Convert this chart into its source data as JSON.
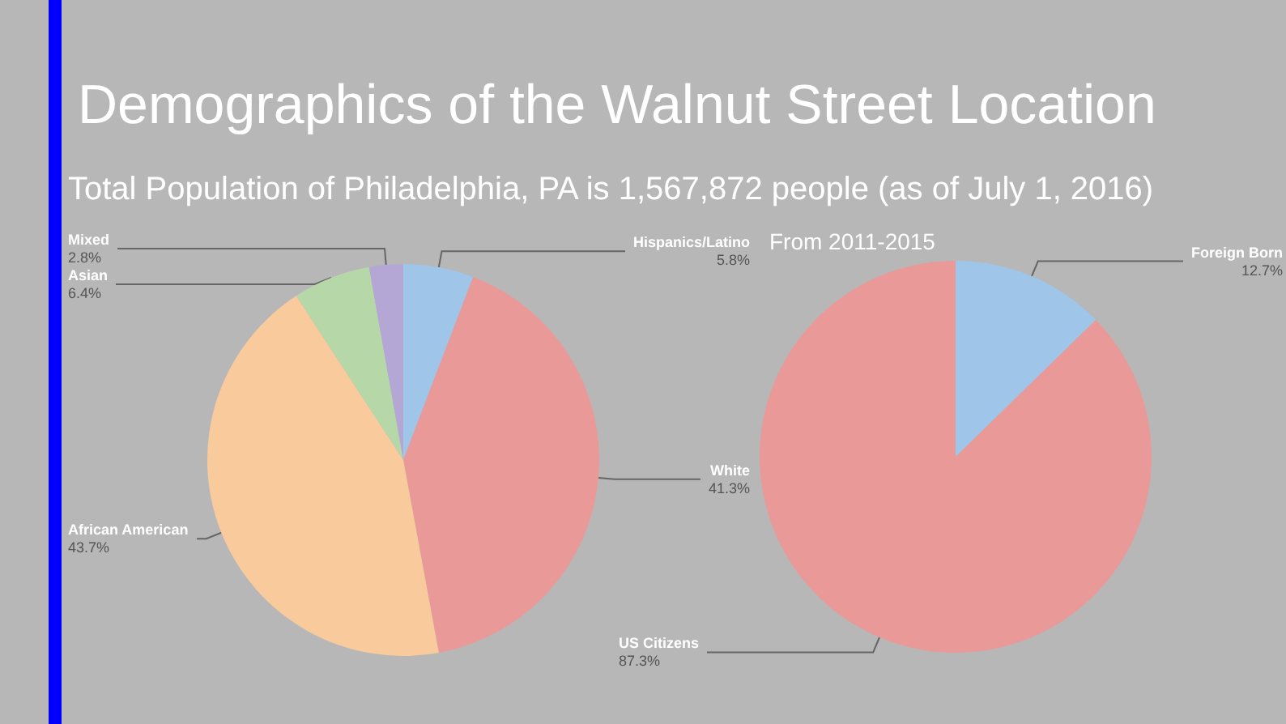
{
  "chart_data": [
    {
      "type": "pie",
      "title": "Demographics of the Walnut Street Location",
      "subtitle": "Total Population of Philadelphia, PA is 1,567,872 people (as of July 1, 2016)",
      "categories": [
        "Hispanics/Latino",
        "White",
        "African American",
        "Asian",
        "Mixed"
      ],
      "values": [
        5.8,
        41.3,
        43.7,
        6.4,
        2.8
      ],
      "value_labels": [
        "5.8%",
        "41.3%",
        "43.7%",
        "6.4%",
        "2.8%"
      ],
      "colors": [
        "#9fc5e8",
        "#ea9999",
        "#f9cb9c",
        "#b6d7a8",
        "#b4a7d6"
      ]
    },
    {
      "type": "pie",
      "title": "From 2011-2015",
      "categories": [
        "Foreign Born",
        "US Citizens"
      ],
      "values": [
        12.7,
        87.3
      ],
      "value_labels": [
        "12.7%",
        "87.3%"
      ],
      "colors": [
        "#9fc5e8",
        "#ea9999"
      ]
    }
  ]
}
